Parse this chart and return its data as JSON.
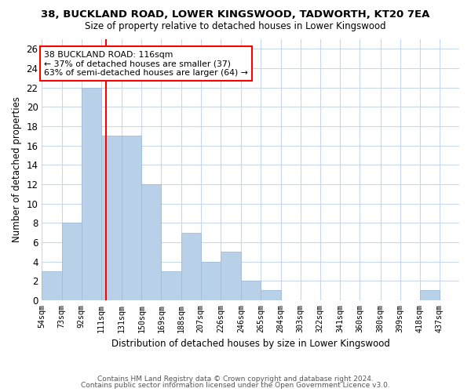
{
  "title": "38, BUCKLAND ROAD, LOWER KINGSWOOD, TADWORTH, KT20 7EA",
  "subtitle": "Size of property relative to detached houses in Lower Kingswood",
  "xlabel": "Distribution of detached houses by size in Lower Kingswood",
  "ylabel": "Number of detached properties",
  "bar_color": "#b8d0e8",
  "bar_edge_color": "#a0bcd8",
  "annotation_line_color": "red",
  "annotation_text_line1": "38 BUCKLAND ROAD: 116sqm",
  "annotation_text_line2": "← 37% of detached houses are smaller (37)",
  "annotation_text_line3": "63% of semi-detached houses are larger (64) →",
  "property_sqm": 116,
  "categories": [
    "54sqm",
    "73sqm",
    "92sqm",
    "111sqm",
    "131sqm",
    "150sqm",
    "169sqm",
    "188sqm",
    "207sqm",
    "226sqm",
    "246sqm",
    "265sqm",
    "284sqm",
    "303sqm",
    "322sqm",
    "341sqm",
    "360sqm",
    "380sqm",
    "399sqm",
    "418sqm",
    "437sqm"
  ],
  "bin_edges": [
    54,
    73,
    92,
    111,
    131,
    150,
    169,
    188,
    207,
    226,
    246,
    265,
    284,
    303,
    322,
    341,
    360,
    380,
    399,
    418,
    437,
    456
  ],
  "values": [
    3,
    8,
    22,
    17,
    17,
    12,
    3,
    7,
    4,
    5,
    2,
    1,
    0,
    0,
    0,
    0,
    0,
    0,
    0,
    1,
    0
  ],
  "ylim": [
    0,
    27
  ],
  "yticks": [
    0,
    2,
    4,
    6,
    8,
    10,
    12,
    14,
    16,
    18,
    20,
    22,
    24,
    26
  ],
  "footer1": "Contains HM Land Registry data © Crown copyright and database right 2024.",
  "footer2": "Contains public sector information licensed under the Open Government Licence v3.0.",
  "background_color": "#ffffff",
  "plot_bg_color": "#ffffff",
  "grid_color": "#c8d8e8"
}
